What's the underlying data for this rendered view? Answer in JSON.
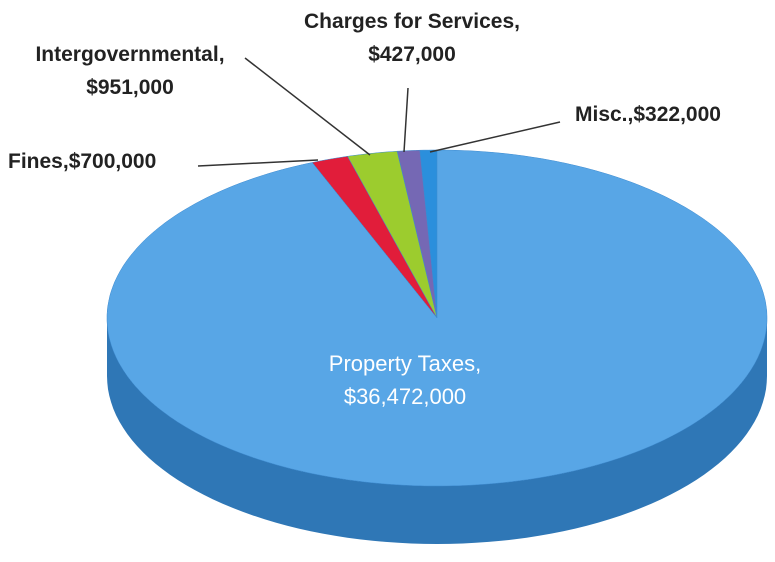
{
  "chart_data": {
    "type": "pie3d",
    "categories": [
      "Misc.",
      "Charges for Services",
      "Intergovernmental",
      "Fines",
      "Property Taxes"
    ],
    "values": [
      322000,
      427000,
      951000,
      700000,
      36472000
    ],
    "value_labels": [
      "$322,000",
      "$427,000",
      "$951,000",
      "$700,000",
      "$36,472,000"
    ],
    "label_separator": ",",
    "colors": [
      "#2b8fdc",
      "#7568b4",
      "#9ccc2e",
      "#e11d3a",
      "#58a6e6"
    ],
    "side_colors": [
      "#1f6fb0",
      "#564a90",
      "#76a21e",
      "#a8132a",
      "#2f77b6"
    ]
  }
}
